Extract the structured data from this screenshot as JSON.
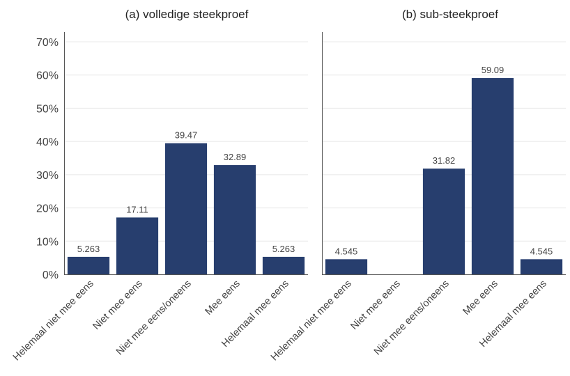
{
  "chart_data": [
    {
      "type": "bar",
      "title": "(a) volledige steekproef",
      "categories": [
        "Helemaal niet mee eens",
        "Niet mee eens",
        "Niet mee eens/oneens",
        "Mee eens",
        "Helemaal mee eens"
      ],
      "values": [
        5.263,
        17.11,
        39.47,
        32.89,
        5.263
      ],
      "value_labels": [
        "5.263",
        "17.11",
        "39.47",
        "32.89",
        "5.263"
      ],
      "ylim": [
        0,
        70
      ],
      "yticks": [
        "0%",
        "10%",
        "20%",
        "30%",
        "40%",
        "50%",
        "60%",
        "70%"
      ],
      "bar_color": "#273e6e",
      "grid": true
    },
    {
      "type": "bar",
      "title": "(b) sub-steekproef",
      "categories": [
        "Helemaal niet mee eens",
        "Niet mee eens",
        "Niet mee eens/oneens",
        "Mee eens",
        "Helemaal mee eens"
      ],
      "values": [
        4.545,
        0,
        31.82,
        59.09,
        4.545
      ],
      "value_labels": [
        "4.545",
        "",
        "31.82",
        "59.09",
        "4.545"
      ],
      "ylim": [
        0,
        70
      ],
      "yticks": [
        "0%",
        "10%",
        "20%",
        "30%",
        "40%",
        "50%",
        "60%",
        "70%"
      ],
      "bar_color": "#273e6e",
      "grid": true
    }
  ]
}
